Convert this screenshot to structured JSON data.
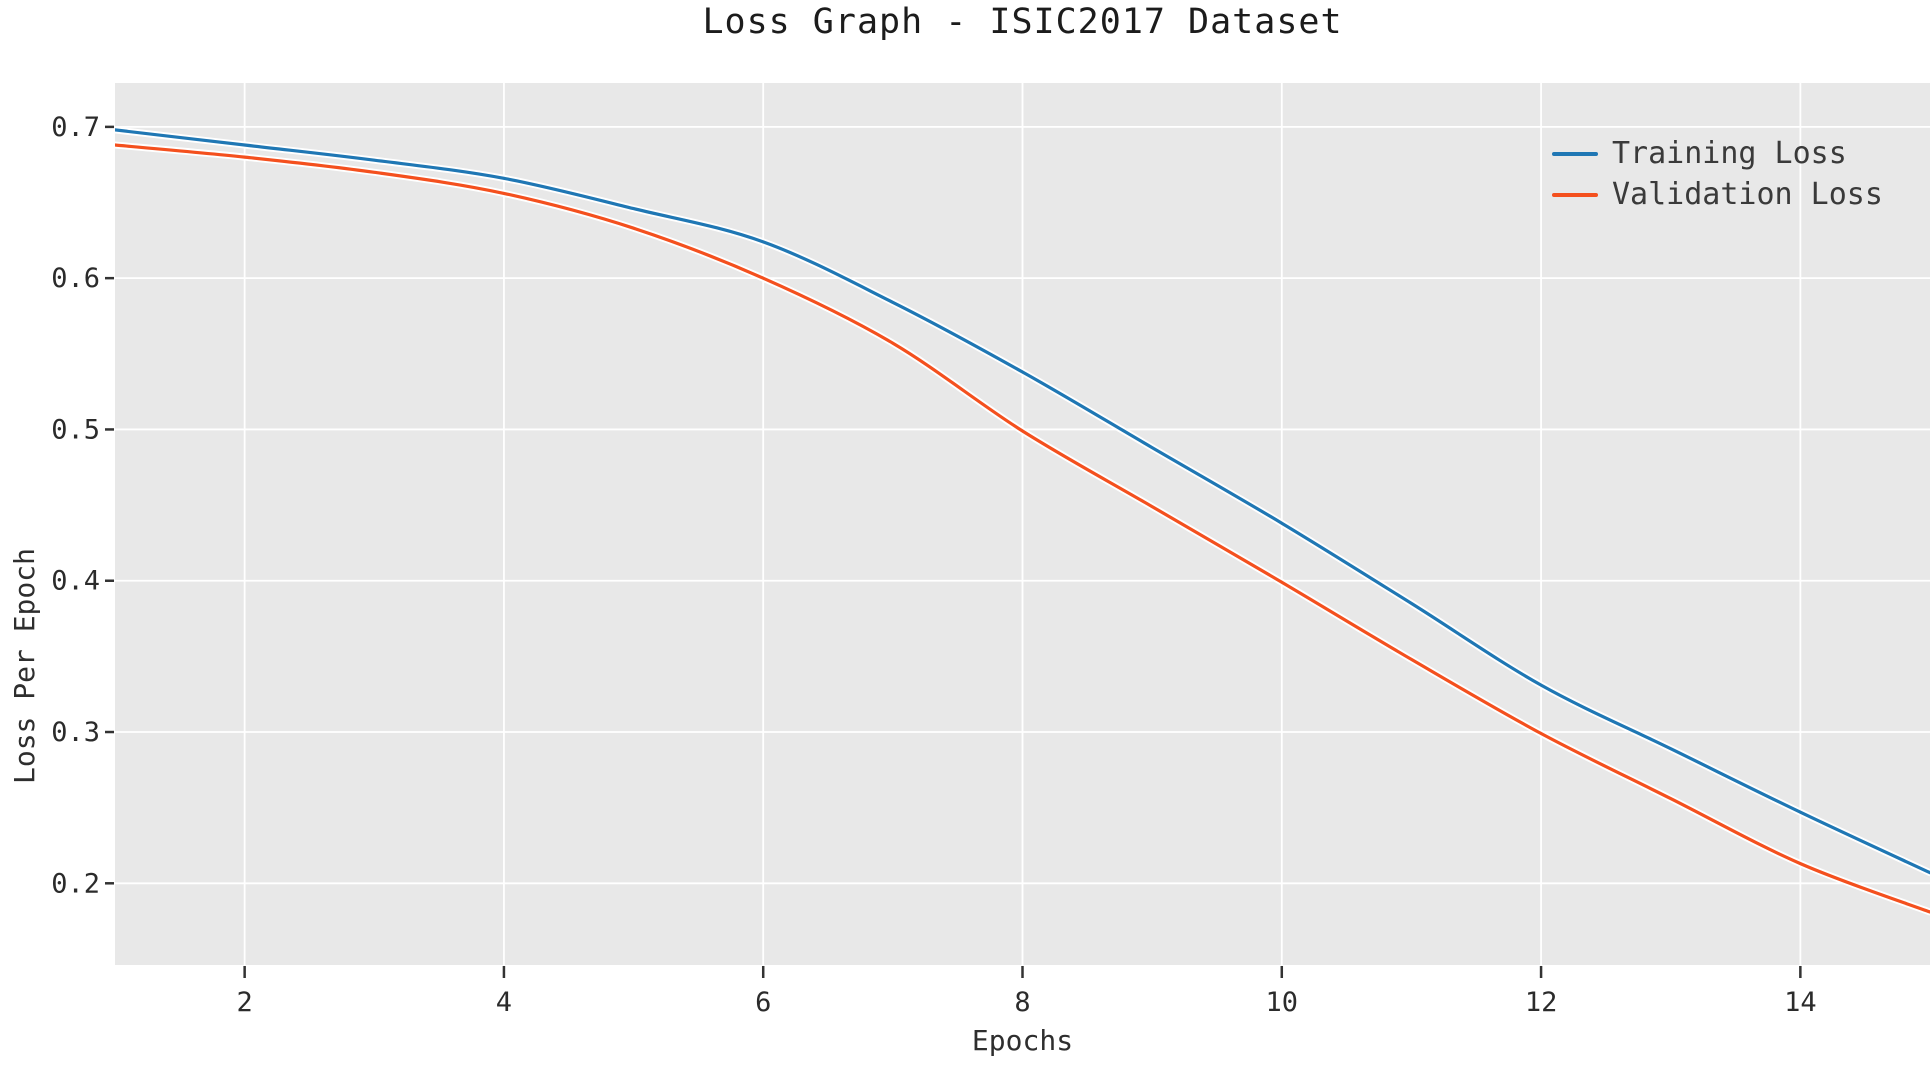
{
  "chart_data": {
    "type": "line",
    "title": "Loss Graph - ISIC2017 Dataset",
    "xlabel": "Epochs",
    "ylabel": "Loss Per Epoch",
    "x": [
      1,
      2,
      3,
      4,
      5,
      6,
      7,
      8,
      9,
      10,
      11,
      12,
      13,
      14,
      15
    ],
    "series": [
      {
        "name": "Training Loss",
        "color": "#1f77b4",
        "values": [
          0.698,
          0.688,
          0.678,
          0.666,
          0.646,
          0.624,
          0.584,
          0.538,
          0.488,
          0.438,
          0.385,
          0.331,
          0.289,
          0.247,
          0.207
        ]
      },
      {
        "name": "Validation Loss",
        "color": "#f4501e",
        "values": [
          0.688,
          0.68,
          0.67,
          0.656,
          0.633,
          0.6,
          0.557,
          0.499,
          0.449,
          0.399,
          0.348,
          0.299,
          0.256,
          0.213,
          0.181
        ]
      }
    ],
    "xticks": [
      2,
      4,
      6,
      8,
      10,
      12,
      14
    ],
    "xtick_labels": [
      "2",
      "4",
      "6",
      "8",
      "10",
      "12",
      "14"
    ],
    "yticks": [
      0.2,
      0.3,
      0.4,
      0.5,
      0.6,
      0.7
    ],
    "ytick_labels": [
      "0.2",
      "0.3",
      "0.4",
      "0.5",
      "0.6",
      "0.7"
    ],
    "xlim": [
      1,
      15
    ],
    "ylim": [
      0.146,
      0.729
    ],
    "grid": true,
    "legend_position": "upper right",
    "styles": {
      "plot_bg": "#e8e8e8",
      "grid_color": "#ffffff",
      "tick_color": "#333333",
      "tick_label_color": "#2b2b2b",
      "line_halo_color": "#ffffff"
    }
  }
}
